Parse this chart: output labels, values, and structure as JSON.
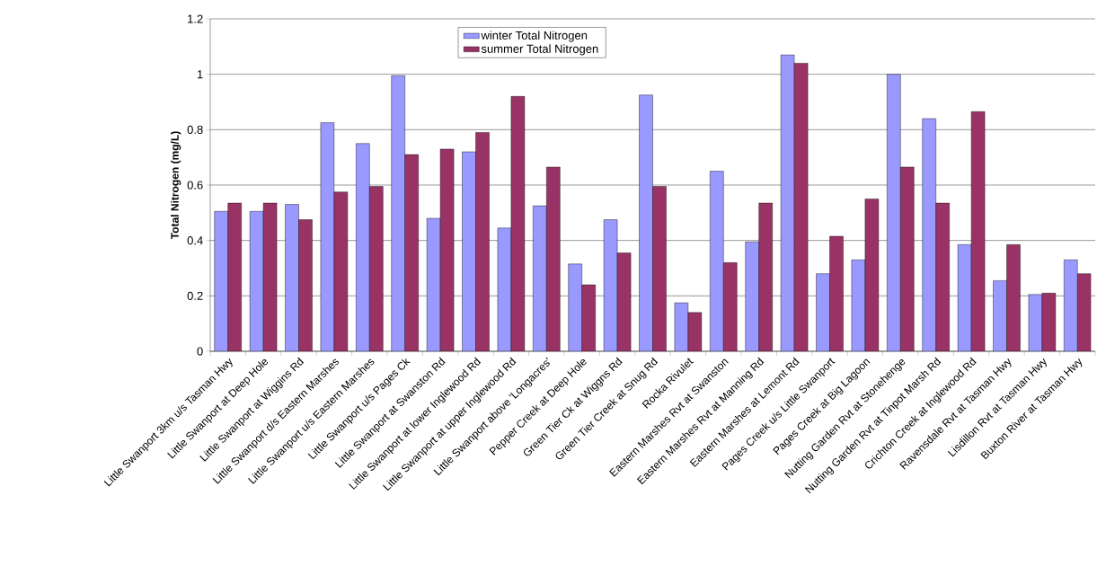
{
  "chart_data": {
    "type": "bar",
    "ylabel": "Total Nitrogen (mg/L)",
    "categories": [
      "Little Swanport 3km u/s Tasman Hwy",
      "Little Swanport at Deep Hole",
      "Little Swanport at Wiggins Rd",
      "Little Swanport d/s Eastern Marshes",
      "Little Swanport u/s Eastern Marshes",
      "Little Swanport u/s Pages Ck",
      "Little Swanport at Swanston Rd",
      "Little Swanport at lower Inglewood Rd",
      "Little Swanport at upper Inglewood Rd",
      "Little Swanport above 'Longacres'",
      "Pepper Creek at Deep Hole",
      "Green Tier Ck at Wiggns Rd",
      "Green Tier Creek at Snug Rd",
      "Rocka Rivulet",
      "Eastern Marshes Rvt at Swanston",
      "Eastern Marshes Rvt at Manning Rd",
      "Eastern Marshes at Lemont Rd",
      "Pages Creek u/s Little Swanport",
      "Pages Creek at Big Lagoon",
      "Nutting Garden Rvt at Stonehenge",
      "Nutting Garden Rvt at Tinpot Marsh Rd",
      "Crichton Creek at Inglewood Rd",
      "Ravensdale Rvt at Tasman Hwy",
      "Lisdillon Rvt at Tasman Hwy",
      "Buxton River at Tasman Hwy"
    ],
    "series": [
      {
        "name": "winter Total Nitrogen",
        "color": "#9999ff",
        "values": [
          0.505,
          0.505,
          0.53,
          0.825,
          0.75,
          0.995,
          0.48,
          0.72,
          0.445,
          0.525,
          0.315,
          0.475,
          0.925,
          0.175,
          0.65,
          0.395,
          1.07,
          0.28,
          0.33,
          1.0,
          0.84,
          0.385,
          0.255,
          0.205,
          0.33
        ]
      },
      {
        "name": "summer Total Nitrogen",
        "color": "#993366",
        "values": [
          0.535,
          0.535,
          0.475,
          0.575,
          0.595,
          0.71,
          0.73,
          0.79,
          0.92,
          0.665,
          0.24,
          0.355,
          0.595,
          0.14,
          0.32,
          0.535,
          1.04,
          0.415,
          0.55,
          0.665,
          0.535,
          0.865,
          0.385,
          0.21,
          0.28
        ]
      }
    ],
    "ylim": [
      0,
      1.2
    ],
    "yticks": [
      0,
      0.2,
      0.4,
      0.6,
      0.8,
      1,
      1.2
    ],
    "grid": "y",
    "legend": "top"
  }
}
